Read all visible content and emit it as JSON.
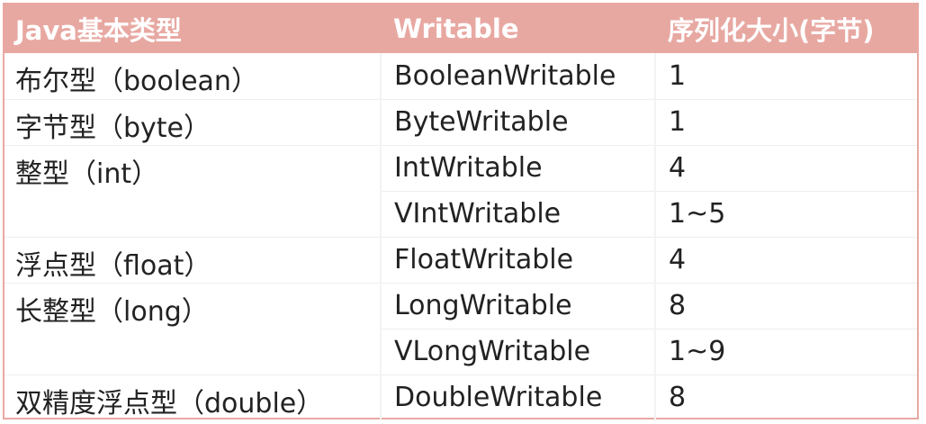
{
  "headers": {
    "java_type": "Java基本类型",
    "writable": "Writable",
    "size": "序列化大小(字节)"
  },
  "rows": [
    {
      "java_type": "布尔型（boolean）",
      "writable": "BooleanWritable",
      "size": "1"
    },
    {
      "java_type": "字节型（byte）",
      "writable": "ByteWritable",
      "size": "1"
    },
    {
      "java_type": "整型（int）",
      "writable": "IntWritable",
      "size": "4"
    },
    {
      "java_type": "",
      "writable": "VIntWritable",
      "size": "1~5"
    },
    {
      "java_type": "浮点型（float）",
      "writable": "FloatWritable",
      "size": "4"
    },
    {
      "java_type": "长整型（long）",
      "writable": "LongWritable",
      "size": "8"
    },
    {
      "java_type": "",
      "writable": "VLongWritable",
      "size": "1~9"
    },
    {
      "java_type": "双精度浮点型（double）",
      "writable": "DoubleWritable",
      "size": "8"
    }
  ],
  "colors": {
    "header_bg": "#e8a8a2",
    "header_text": "#ffffff",
    "body_text": "#222222"
  }
}
